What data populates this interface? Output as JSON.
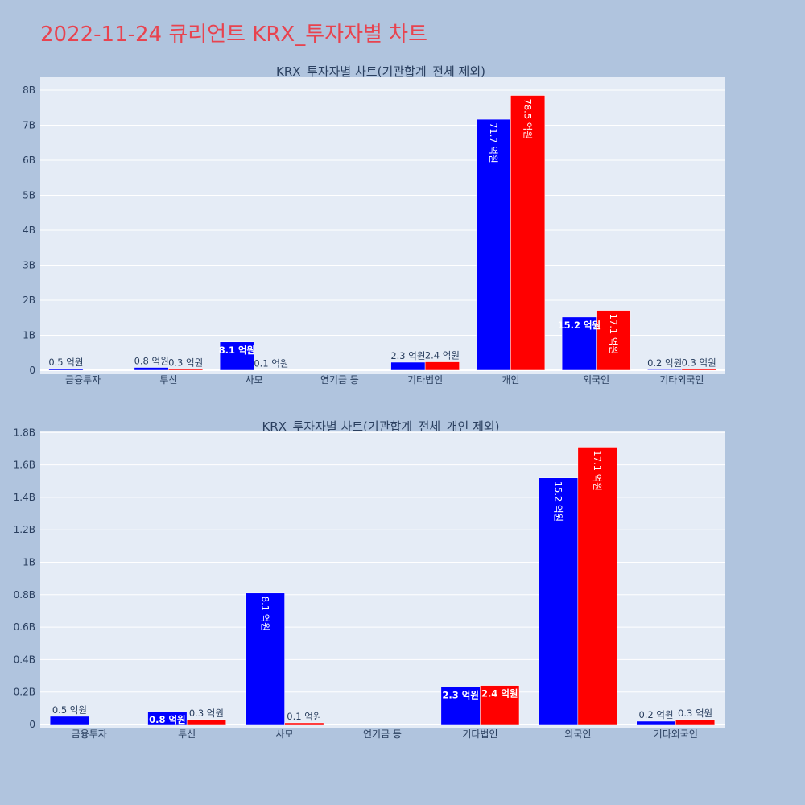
{
  "page": {
    "title": "2022-11-24 큐리언트 KRX_투자자별 차트"
  },
  "colors": {
    "background": "#b0c4de",
    "plot_bg": "#e5ecf6",
    "title": "#e8434f",
    "series_a": "#0000ff",
    "series_b": "#ff0000"
  },
  "chart_data": [
    {
      "type": "bar",
      "title": "KRX_투자자별 차트(기관합계_전체 제외)",
      "categories": [
        "금융투자",
        "투신",
        "사모",
        "연기금 등",
        "기타법인",
        "개인",
        "외국인",
        "기타외국인"
      ],
      "series": [
        {
          "color": "#0000ff",
          "values": [
            0.05,
            0.08,
            0.81,
            0,
            0.23,
            7.17,
            1.52,
            0.02
          ],
          "labels": [
            "0.5 억원",
            "0.8 억원",
            "8.1 억원",
            "",
            "2.3 억원",
            "71.7 억원",
            "15.2 억원",
            "0.2 억원"
          ]
        },
        {
          "color": "#ff0000",
          "values": [
            0,
            0.03,
            0.01,
            0,
            0.24,
            7.85,
            1.71,
            0.03
          ],
          "labels": [
            "",
            "0.3 억원",
            "0.1 억원",
            "",
            "2.4 억원",
            "78.5 억원",
            "17.1 억원",
            "0.3 억원"
          ]
        }
      ],
      "ylim": [
        0,
        8.45
      ],
      "yticks": [
        0,
        1,
        2,
        3,
        4,
        5,
        6,
        7,
        8
      ],
      "ytick_labels": [
        "0",
        "1B",
        "2B",
        "3B",
        "4B",
        "5B",
        "6B",
        "7B",
        "8B"
      ],
      "grid": true,
      "legend": "none"
    },
    {
      "type": "bar",
      "title": "KRX_투자자별 차트(기관합계_전체_개인 제외)",
      "categories": [
        "금융투자",
        "투신",
        "사모",
        "연기금 등",
        "기타법인",
        "외국인",
        "기타외국인"
      ],
      "series": [
        {
          "color": "#0000ff",
          "values": [
            0.05,
            0.08,
            0.81,
            0,
            0.23,
            1.52,
            0.02
          ],
          "labels": [
            "0.5 억원",
            "0.8 억원",
            "8.1 억원",
            "",
            "2.3 억원",
            "15.2 억원",
            "0.2 억원"
          ]
        },
        {
          "color": "#ff0000",
          "values": [
            0,
            0.03,
            0.01,
            0,
            0.24,
            1.71,
            0.03
          ],
          "labels": [
            "",
            "0.3 억원",
            "0.1 억원",
            "",
            "2.4 억원",
            "17.1 억원",
            "0.3 억원"
          ]
        }
      ],
      "ylim": [
        0,
        1.82
      ],
      "yticks": [
        0,
        0.2,
        0.4,
        0.6,
        0.8,
        1.0,
        1.2,
        1.4,
        1.6,
        1.8
      ],
      "ytick_labels": [
        "0",
        "0.2B",
        "0.4B",
        "0.6B",
        "0.8B",
        "1B",
        "1.2B",
        "1.4B",
        "1.6B",
        "1.8B"
      ],
      "grid": true,
      "legend": "none"
    }
  ]
}
